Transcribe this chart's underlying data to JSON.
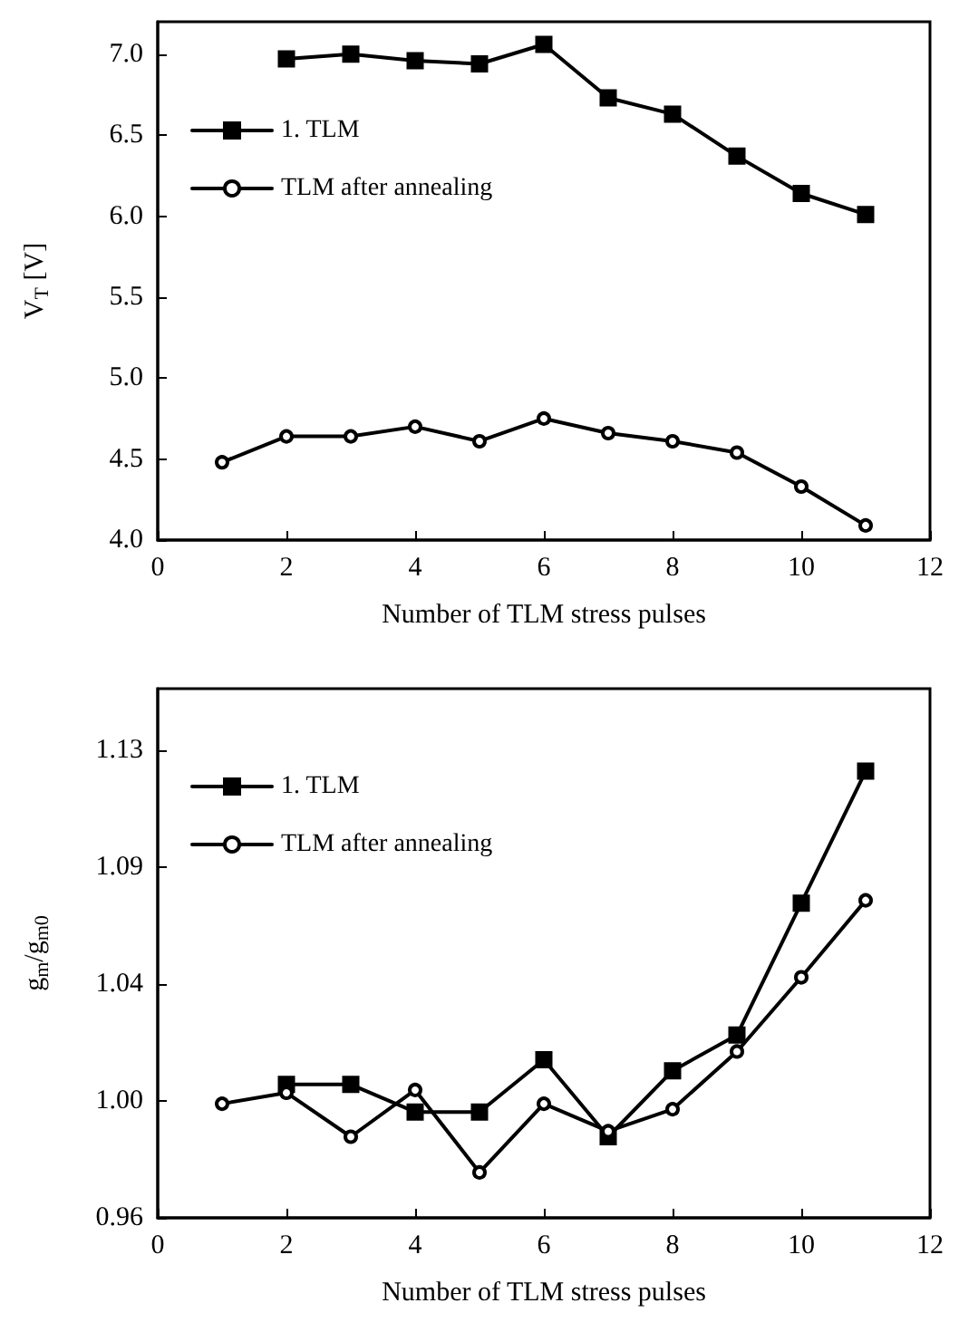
{
  "chart_data": [
    {
      "type": "line",
      "xlabel": "Number of TLM stress pulses",
      "ylabel": "V$_{T}$ [V]",
      "xlim": [
        0,
        12
      ],
      "xticks": [
        0,
        2,
        4,
        6,
        8,
        10,
        12
      ],
      "ylim": [
        4.0,
        7.2
      ],
      "yticks": [
        {
          "value": 4.0,
          "label": "4.0"
        },
        4.5,
        {
          "value": 5.0,
          "label": "5.0"
        },
        5.5,
        {
          "value": 6.0,
          "label": "6.0"
        },
        6.5,
        {
          "value": 7.0,
          "label": "7.0"
        }
      ],
      "legend": "top left",
      "grid": false,
      "line_style": "solid",
      "series": [
        {
          "name": "1. TLM",
          "color": "#000000",
          "marker": "square",
          "x": [
            2,
            3,
            4,
            5,
            6,
            7,
            8,
            9,
            10,
            11
          ],
          "values": [
            6.97,
            7.0,
            6.96,
            6.94,
            7.06,
            6.73,
            6.63,
            6.37,
            6.14,
            6.01
          ]
        },
        {
          "name": "TLM after annealing",
          "color": "#000000",
          "marker": "circle",
          "x": [
            1,
            2,
            3,
            4,
            5,
            6,
            7,
            8,
            9,
            10,
            11
          ],
          "values": [
            4.48,
            4.64,
            4.64,
            4.7,
            4.61,
            4.75,
            4.66,
            4.61,
            4.54,
            4.33,
            4.09
          ]
        }
      ]
    },
    {
      "type": "line",
      "xlabel": "Number of TLM stress pulses",
      "ylabel": "g$_{m}$/g$_{m0}$",
      "xlim": [
        0,
        12
      ],
      "xticks": [
        0,
        2,
        4,
        6,
        8,
        10,
        12
      ],
      "ylim": [
        0.9575,
        1.15
      ],
      "yticks": [
        {
          "value": 0.9575,
          "label": "0.96"
        },
        {
          "value": 1.0,
          "label": "1.00"
        },
        {
          "value": 1.0425,
          "label": "1.04"
        },
        {
          "value": 1.085,
          "label": "1.09"
        },
        {
          "value": 1.1275,
          "label": "1.13"
        }
      ],
      "legend": "top left",
      "grid": false,
      "line_style": "solid",
      "series": [
        {
          "name": "1. TLM",
          "color": "#000000",
          "marker": "square",
          "x": [
            2,
            3,
            4,
            5,
            6,
            7,
            8,
            9,
            10,
            11
          ],
          "values": [
            1.006,
            1.006,
            0.996,
            0.996,
            1.015,
            0.987,
            1.011,
            1.024,
            1.072,
            1.12
          ]
        },
        {
          "name": "TLM after annealing",
          "color": "#000000",
          "marker": "circle",
          "x": [
            1,
            2,
            3,
            4,
            5,
            6,
            7,
            8,
            9,
            10,
            11
          ],
          "values": [
            0.999,
            1.003,
            0.987,
            1.004,
            0.974,
            0.999,
            0.989,
            0.997,
            1.018,
            1.045,
            1.073
          ]
        }
      ]
    }
  ]
}
